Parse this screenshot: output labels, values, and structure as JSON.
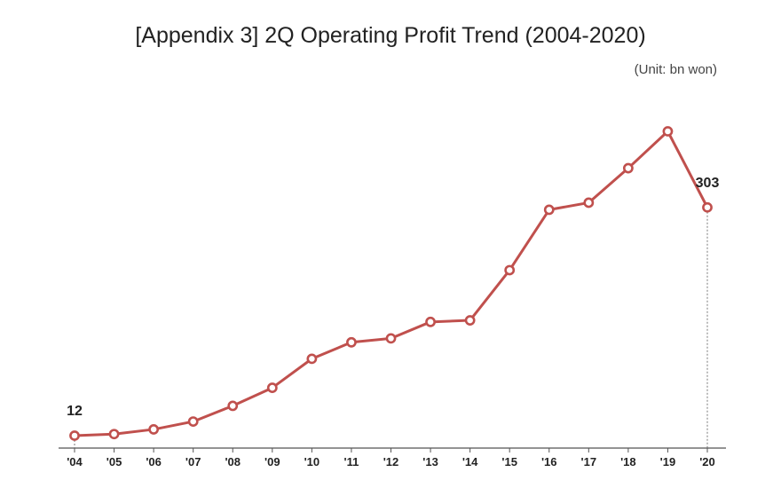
{
  "chart_data": {
    "type": "line",
    "title": "[Appendix 3] 2Q Operating Profit Trend (2004-2020)",
    "unit_label": "(Unit: bn won)",
    "categories": [
      "'04",
      "'05",
      "'06",
      "'07",
      "'08",
      "'09",
      "'10",
      "'11",
      "'12",
      "'13",
      "'14",
      "'15",
      "'16",
      "'17",
      "'18",
      "'19",
      "'20"
    ],
    "series": [
      {
        "values": [
          12,
          14,
          20,
          30,
          50,
          73,
          110,
          131,
          136,
          157,
          159,
          223,
          300,
          309,
          353,
          400,
          303
        ],
        "color": "#c0504d"
      }
    ],
    "value_labels": [
      {
        "index": 0,
        "text": "12"
      },
      {
        "index": 16,
        "text": "303"
      }
    ],
    "grid": false,
    "legend": "none"
  }
}
